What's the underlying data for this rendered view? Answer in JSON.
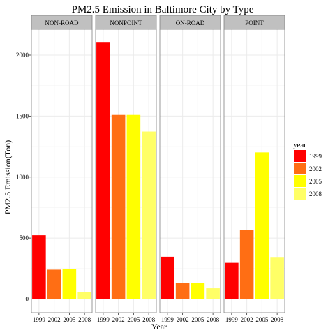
{
  "chart_data": {
    "type": "bar",
    "title": "PM2.5 Emission in Baltimore City by Type",
    "xlabel": "Year",
    "ylabel": "PM2.5 Emission(Ton)",
    "ylim": [
      0,
      2200
    ],
    "yticks": [
      0,
      500,
      1000,
      1500,
      2000
    ],
    "categories": [
      "1999",
      "2002",
      "2005",
      "2008"
    ],
    "grid": true,
    "legend": {
      "title": "year",
      "placement": "right",
      "entries": [
        "1999",
        "2002",
        "2005",
        "2008"
      ]
    },
    "colors": {
      "1999": "#ff0000",
      "2002": "#ff6e14",
      "2005": "#ffff00",
      "2008": "#ffff66"
    },
    "facets": [
      {
        "name": "NON-ROAD",
        "values": [
          522.9,
          240.8,
          248.9,
          55.8
        ]
      },
      {
        "name": "NONPOINT",
        "values": [
          2107.6,
          1509.5,
          1509.5,
          1373.2
        ]
      },
      {
        "name": "ON-ROAD",
        "values": [
          346.8,
          134.3,
          130.4,
          88.3
        ]
      },
      {
        "name": "POINT",
        "values": [
          296.8,
          569.3,
          1202.5,
          344.9
        ]
      }
    ]
  }
}
